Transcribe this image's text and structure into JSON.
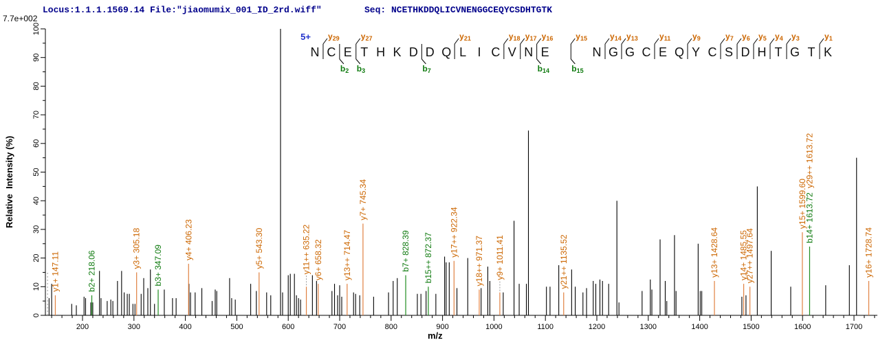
{
  "header": {
    "locus_file": "Locus:1.1.1.1569.14 File:\"jiaomumix_001_ID_2rd.wiff\"",
    "seq_label": "Seq: NCETHKDDQLICVNENGGCEQYCSDHTGTK",
    "max_intensity": "7.7e+002"
  },
  "colors": {
    "header_text": "#00008B",
    "y_ion_text": "#CC6600",
    "y_ion_line": "#E08040",
    "b_ion_text": "#0E7A0E",
    "b_ion_line": "#1E8C1E",
    "peak": "#000000",
    "charge_label": "#2233CC",
    "axis": "#000000",
    "precursor_dash": "#999999"
  },
  "sequence_annotation": {
    "charge_label": "5+",
    "sequence": "NCETHKDDQLICVNENGGCEQYCSDHTGTK",
    "y_ions": [
      {
        "label": "y",
        "num": "29",
        "gap": 1
      },
      {
        "label": "y",
        "num": "27",
        "gap": 3
      },
      {
        "label": "y",
        "num": "21",
        "gap": 9
      },
      {
        "label": "y",
        "num": "18",
        "gap": 12
      },
      {
        "label": "y",
        "num": "17",
        "gap": 13
      },
      {
        "label": "y",
        "num": "16",
        "gap": 14
      },
      {
        "label": "y",
        "num": "15",
        "gap": 15
      },
      {
        "label": "y",
        "num": "14",
        "gap": 16
      },
      {
        "label": "y",
        "num": "13",
        "gap": 17
      },
      {
        "label": "y",
        "num": "11",
        "gap": 19
      },
      {
        "label": "y",
        "num": "9",
        "gap": 21
      },
      {
        "label": "y",
        "num": "7",
        "gap": 23
      },
      {
        "label": "y",
        "num": "6",
        "gap": 24
      },
      {
        "label": "y",
        "num": "5",
        "gap": 25
      },
      {
        "label": "y",
        "num": "4",
        "gap": 26
      },
      {
        "label": "y",
        "num": "3",
        "gap": 27
      },
      {
        "label": "y",
        "num": "1",
        "gap": 29
      }
    ],
    "b_ions": [
      {
        "label": "b",
        "num": "2",
        "gap": 2
      },
      {
        "label": "b",
        "num": "3",
        "gap": 3
      },
      {
        "label": "b",
        "num": "7",
        "gap": 7
      },
      {
        "label": "b",
        "num": "14",
        "gap": 14
      },
      {
        "label": "b",
        "num": "15",
        "gap": 15
      }
    ]
  },
  "chart_data": {
    "type": "bar",
    "title": "",
    "xlabel": "m/z",
    "ylabel": "Relative  Intensity (%)",
    "xlim": [
      130,
      1745
    ],
    "ylim": [
      0,
      100
    ],
    "x_major_ticks": [
      200,
      300,
      400,
      500,
      600,
      700,
      800,
      900,
      1000,
      1100,
      1200,
      1300,
      1400,
      1500,
      1600,
      1700
    ],
    "x_minor_step": 20,
    "y_major_step": 10,
    "y_minor_step": 5,
    "grid": false,
    "precursor_marker": {
      "mz": 132,
      "intensity": 15,
      "style": "dashed"
    },
    "peaks": [
      [
        135,
        6
      ],
      [
        140,
        11
      ],
      [
        179,
        4
      ],
      [
        188,
        3.5
      ],
      [
        203,
        6.5
      ],
      [
        206,
        6
      ],
      [
        216,
        4.5
      ],
      [
        220,
        4.5
      ],
      [
        233,
        15.5
      ],
      [
        236,
        6
      ],
      [
        248,
        5
      ],
      [
        255,
        5.5
      ],
      [
        259,
        5
      ],
      [
        268,
        12
      ],
      [
        276,
        15.5
      ],
      [
        281,
        8
      ],
      [
        287,
        7.5
      ],
      [
        291,
        7.5
      ],
      [
        298,
        4
      ],
      [
        302,
        4
      ],
      [
        314,
        7.5
      ],
      [
        319,
        13
      ],
      [
        327,
        9.5
      ],
      [
        332,
        16
      ],
      [
        340,
        4
      ],
      [
        359,
        9
      ],
      [
        375,
        6
      ],
      [
        382,
        6
      ],
      [
        407,
        11
      ],
      [
        410,
        8
      ],
      [
        419,
        8
      ],
      [
        432,
        9.5
      ],
      [
        452,
        5
      ],
      [
        458,
        9
      ],
      [
        461,
        8.5
      ],
      [
        486,
        13
      ],
      [
        490,
        6
      ],
      [
        497,
        5.5
      ],
      [
        527,
        11
      ],
      [
        538,
        8.5
      ],
      [
        558,
        8
      ],
      [
        566,
        7
      ],
      [
        585,
        100
      ],
      [
        589,
        8
      ],
      [
        600,
        14
      ],
      [
        604,
        14.5
      ],
      [
        612,
        14.5
      ],
      [
        616,
        7
      ],
      [
        620,
        6
      ],
      [
        624,
        5.5
      ],
      [
        647,
        14
      ],
      [
        655,
        12
      ],
      [
        685,
        8.5
      ],
      [
        690,
        11
      ],
      [
        696,
        7
      ],
      [
        700,
        10.5
      ],
      [
        704,
        6.5
      ],
      [
        727,
        8
      ],
      [
        731,
        7.5
      ],
      [
        739,
        7
      ],
      [
        766,
        6.5
      ],
      [
        795,
        8
      ],
      [
        804,
        12
      ],
      [
        812,
        13
      ],
      [
        851,
        7.5
      ],
      [
        858,
        7.5
      ],
      [
        868,
        8.5
      ],
      [
        887,
        7.5
      ],
      [
        904,
        20.5
      ],
      [
        907,
        18.5
      ],
      [
        913,
        18.5
      ],
      [
        928,
        9.5
      ],
      [
        949,
        20
      ],
      [
        975,
        9.5
      ],
      [
        988,
        17
      ],
      [
        992,
        12
      ],
      [
        1018,
        8
      ],
      [
        1039,
        33
      ],
      [
        1049,
        11
      ],
      [
        1063,
        11
      ],
      [
        1067,
        64.5
      ],
      [
        1102,
        10
      ],
      [
        1109,
        10
      ],
      [
        1126,
        17.5
      ],
      [
        1151,
        16
      ],
      [
        1158,
        10
      ],
      [
        1173,
        8
      ],
      [
        1180,
        9.5
      ],
      [
        1193,
        12
      ],
      [
        1198,
        11
      ],
      [
        1206,
        12.5
      ],
      [
        1211,
        12
      ],
      [
        1223,
        11
      ],
      [
        1239,
        40
      ],
      [
        1243,
        4.5
      ],
      [
        1288,
        8.5
      ],
      [
        1304,
        12.5
      ],
      [
        1307,
        9
      ],
      [
        1323,
        26.5
      ],
      [
        1333,
        12
      ],
      [
        1336,
        5
      ],
      [
        1351,
        28
      ],
      [
        1354,
        8.5
      ],
      [
        1397,
        25
      ],
      [
        1401,
        8.5
      ],
      [
        1404,
        8.5
      ],
      [
        1482,
        6.5
      ],
      [
        1490,
        7
      ],
      [
        1512,
        45
      ],
      [
        1539,
        22.5
      ],
      [
        1577,
        10
      ],
      [
        1645,
        10.5
      ],
      [
        1691,
        17.5
      ],
      [
        1705,
        55
      ]
    ],
    "labeled_peaks": [
      {
        "label": "y1+ 147.11",
        "mz": 147.11,
        "intensity": 7,
        "series": "y"
      },
      {
        "label": "b2+ 218.06",
        "mz": 218.06,
        "intensity": 7,
        "series": "b"
      },
      {
        "label": "y3+ 305.18",
        "mz": 305.18,
        "intensity": 15,
        "series": "y"
      },
      {
        "label": "b3+ 347.09",
        "mz": 347.09,
        "intensity": 9,
        "series": "b"
      },
      {
        "label": "y4+ 406.23",
        "mz": 406.23,
        "intensity": 18,
        "series": "y"
      },
      {
        "label": "y5+ 543.30",
        "mz": 543.3,
        "intensity": 15,
        "series": "y"
      },
      {
        "label": "y11++ 635.22",
        "mz": 635.22,
        "intensity": 10,
        "series": "y",
        "connector": 14
      },
      {
        "label": "y6+ 658.32",
        "mz": 658.32,
        "intensity": 11,
        "series": "y"
      },
      {
        "label": "y13++ 714.47",
        "mz": 714.47,
        "intensity": 11,
        "series": "y"
      },
      {
        "label": "y7+ 745.34",
        "mz": 745.34,
        "intensity": 32,
        "series": "y"
      },
      {
        "label": "b7+ 828.39",
        "mz": 828.39,
        "intensity": 14,
        "series": "b"
      },
      {
        "label": "b15++ 872.37",
        "mz": 872.37,
        "intensity": 10,
        "series": "b"
      },
      {
        "label": "y17++ 922.34",
        "mz": 922.34,
        "intensity": 19,
        "series": "y"
      },
      {
        "label": "y18++ 971.37",
        "mz": 971.37,
        "intensity": 9,
        "series": "y"
      },
      {
        "label": "y9+ 1011.41",
        "mz": 1011.41,
        "intensity": 8,
        "series": "y",
        "connector": 14
      },
      {
        "label": "y21++ 1135.52",
        "mz": 1135.52,
        "intensity": 8,
        "series": "y"
      },
      {
        "label": "y13+ 1428.64",
        "mz": 1428.64,
        "intensity": 12,
        "series": "y"
      },
      {
        "label": "y14+ 1485.55",
        "mz": 1485.55,
        "intensity": 11,
        "series": "y"
      },
      {
        "label": "y27++ 1497.64",
        "mz": 1497.64,
        "intensity": 10,
        "series": "y"
      },
      {
        "label": "y15+ 1599.60",
        "mz": 1599.6,
        "intensity": 29,
        "series": "y"
      },
      {
        "label": "b14+ 1613.72",
        "mz": 1613.72,
        "intensity": 24,
        "series": "b"
      },
      {
        "label": "y29++ 1613.72",
        "mz": 1613.72,
        "intensity": 24,
        "series": "y",
        "label_only": true,
        "stack": 80
      },
      {
        "label": "y16+ 1728.74",
        "mz": 1728.74,
        "intensity": 12,
        "series": "y"
      }
    ]
  }
}
